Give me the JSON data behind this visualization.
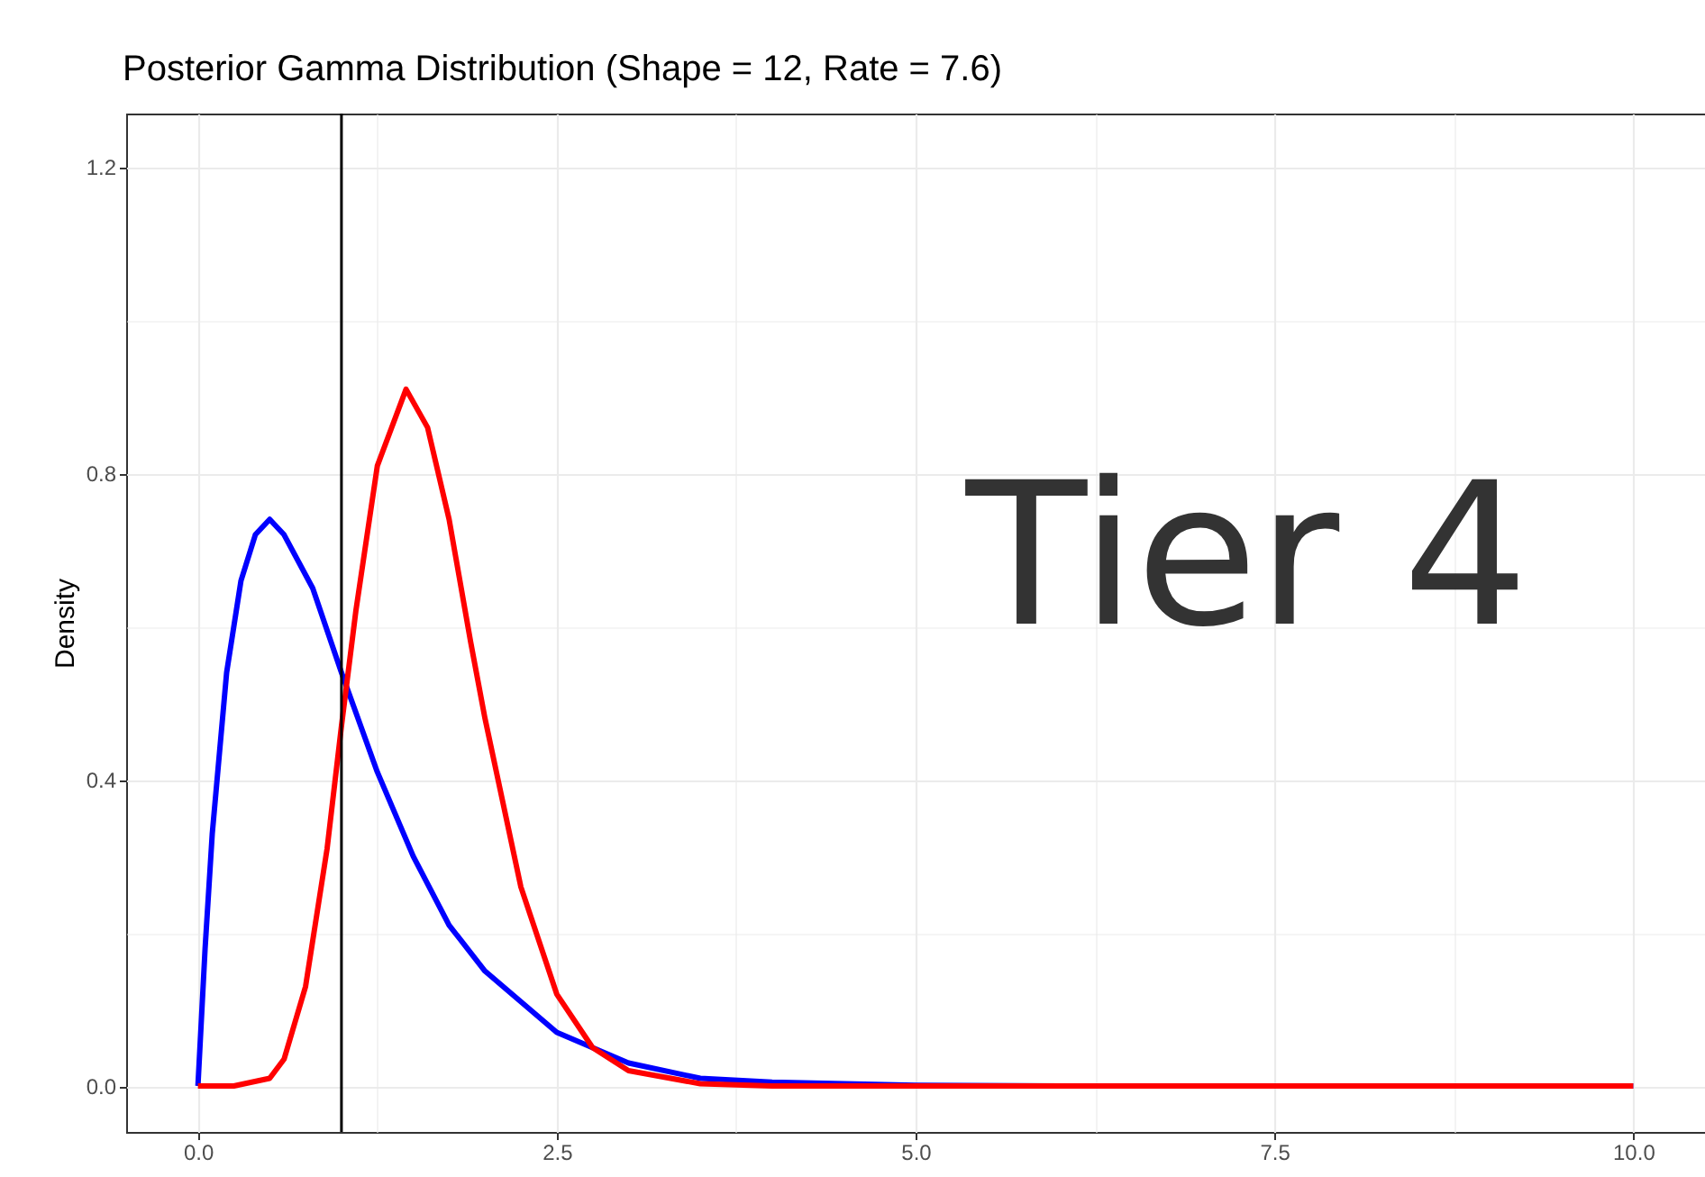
{
  "chart_data": {
    "type": "line",
    "title": "Posterior Gamma Distribution (Shape = 12, Rate = 7.6)",
    "ylabel": "Density",
    "xlim": [
      -0.5,
      10.5
    ],
    "ylim": [
      -0.06,
      1.27
    ],
    "xticks": [
      {
        "value": 0,
        "label": "0.0"
      },
      {
        "value": 1.25,
        "label": null
      },
      {
        "value": 2.5,
        "label": "2.5"
      },
      {
        "value": 3.75,
        "label": null
      },
      {
        "value": 5,
        "label": "5.0"
      },
      {
        "value": 6.25,
        "label": null
      },
      {
        "value": 7.5,
        "label": "7.5"
      },
      {
        "value": 8.75,
        "label": null
      },
      {
        "value": 10,
        "label": "10.0"
      }
    ],
    "yticks": [
      {
        "value": 0,
        "label": "0.0"
      },
      {
        "value": 0.2,
        "label": null
      },
      {
        "value": 0.4,
        "label": "0.4"
      },
      {
        "value": 0.6,
        "label": null
      },
      {
        "value": 0.8,
        "label": "0.8"
      },
      {
        "value": 1.0,
        "label": null
      },
      {
        "value": 1.2,
        "label": "1.2"
      }
    ],
    "grid": true,
    "legend": false,
    "line_style": "solid",
    "marker": "none",
    "series": [
      {
        "color": "#0000ff",
        "x": [
          0,
          0.05,
          0.1,
          0.2,
          0.3,
          0.4,
          0.5,
          0.6,
          0.8,
          1.0,
          1.25,
          1.5,
          1.75,
          2.0,
          2.5,
          3.0,
          3.5,
          4.0,
          5.0,
          6.0,
          10.0
        ],
        "values": [
          0,
          0.18,
          0.33,
          0.54,
          0.66,
          0.72,
          0.74,
          0.72,
          0.65,
          0.54,
          0.41,
          0.3,
          0.21,
          0.15,
          0.07,
          0.03,
          0.01,
          0.005,
          0.001,
          0,
          0
        ]
      },
      {
        "color": "#ff0000",
        "x": [
          0,
          0.25,
          0.5,
          0.6,
          0.75,
          0.9,
          1.0,
          1.1,
          1.25,
          1.45,
          1.6,
          1.75,
          1.9,
          2.0,
          2.25,
          2.5,
          2.75,
          3.0,
          3.5,
          4.0,
          10.0
        ],
        "values": [
          0,
          0,
          0.01,
          0.035,
          0.13,
          0.31,
          0.47,
          0.62,
          0.81,
          0.91,
          0.86,
          0.74,
          0.58,
          0.48,
          0.26,
          0.12,
          0.05,
          0.02,
          0.003,
          0,
          0
        ]
      }
    ],
    "ref_lines": [
      {
        "axis": "x",
        "value": 1,
        "color": "#000000"
      }
    ],
    "annotations": [
      "Tier 4"
    ]
  }
}
